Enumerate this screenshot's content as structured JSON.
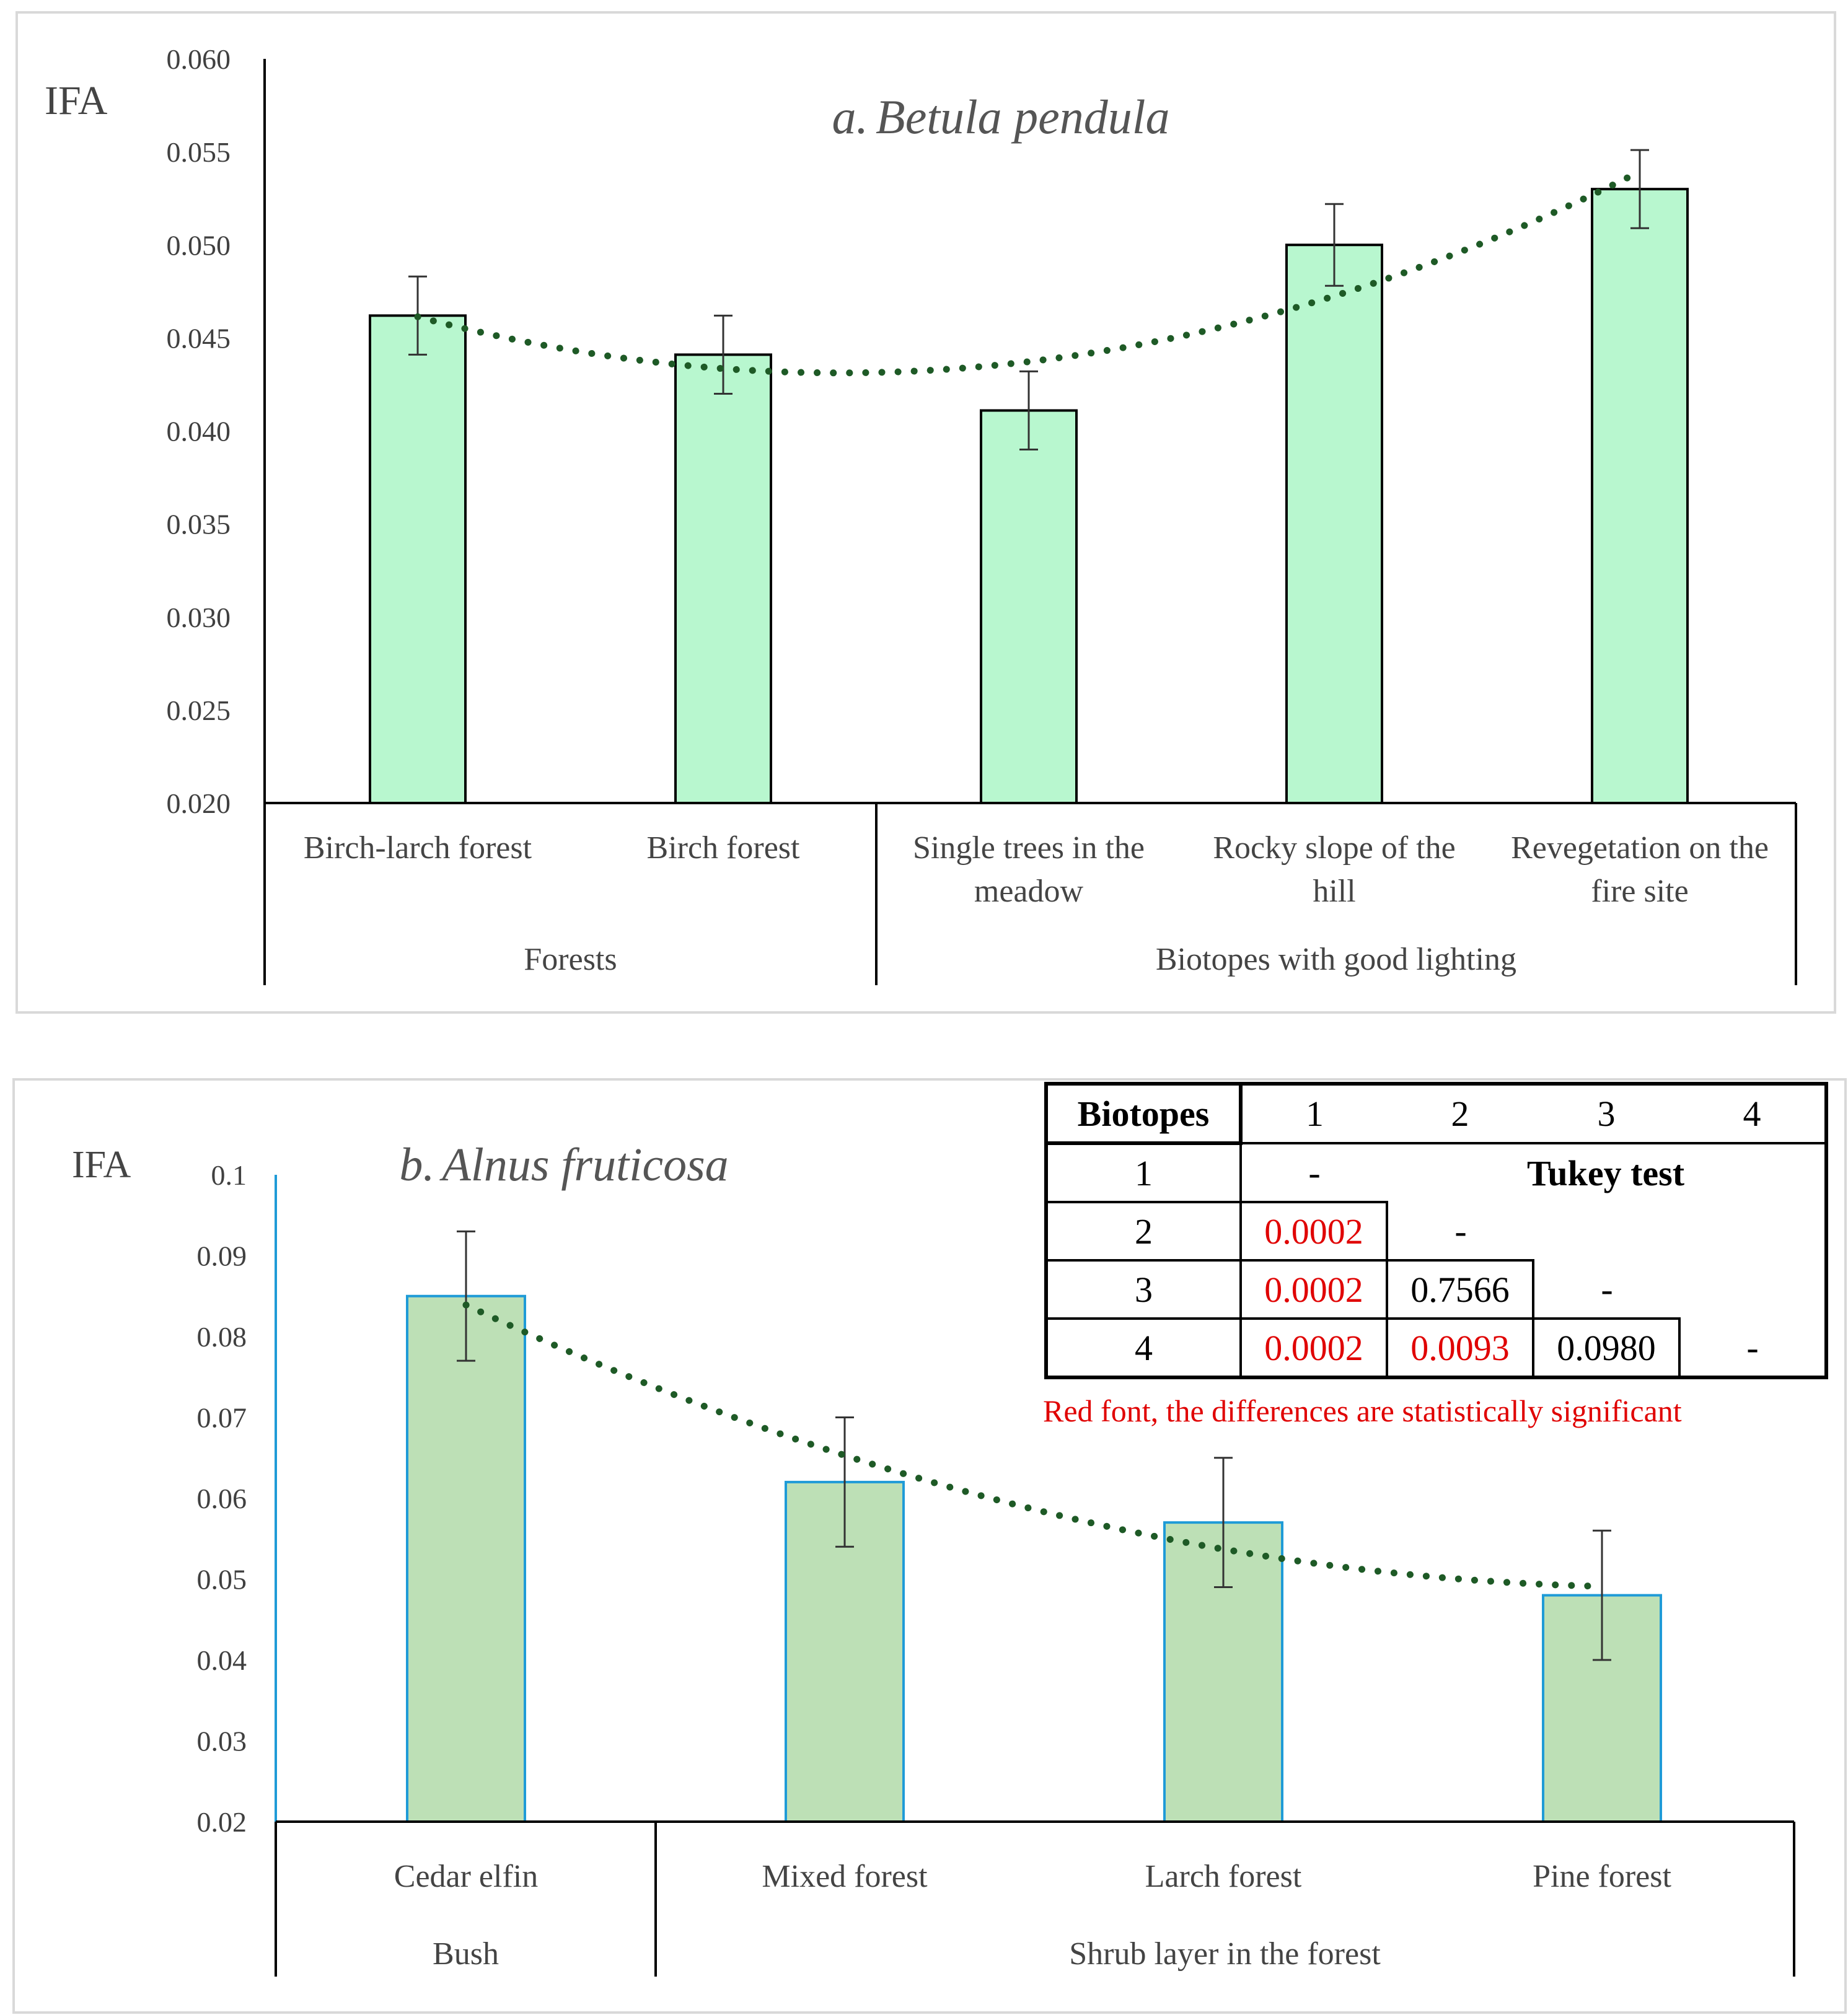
{
  "chart_data": [
    {
      "type": "bar",
      "title_prefix": "a.",
      "title_species": "Betula pendula",
      "ylabel": "IFA",
      "ylim": [
        0.02,
        0.06
      ],
      "yticks": [
        "0.060",
        "0.055",
        "0.050",
        "0.045",
        "0.040",
        "0.035",
        "0.030",
        "0.025",
        "0.020"
      ],
      "categories": [
        "Birch-larch forest",
        "Birch forest",
        "Single trees in the meadow",
        "Rocky slope of the hill",
        "Revegetation on the fire site"
      ],
      "category_lines": [
        [
          "Birch-larch forest"
        ],
        [
          "Birch forest"
        ],
        [
          "Single trees in the",
          "meadow"
        ],
        [
          "Rocky slope of the",
          "hill"
        ],
        [
          "Revegetation on the",
          "fire site"
        ]
      ],
      "values": [
        0.0462,
        0.0441,
        0.0411,
        0.05,
        0.053
      ],
      "errors": [
        0.0021,
        0.0021,
        0.0021,
        0.0022,
        0.0021
      ],
      "groups": [
        {
          "label": "Forests",
          "span": 2
        },
        {
          "label": "Biotopes with good lighting",
          "span": 3
        }
      ],
      "trendline": "polynomial, dotted",
      "bar_fill": "#b8f7cf",
      "bar_stroke": "#000000"
    },
    {
      "type": "bar",
      "title_prefix": "b.",
      "title_species": "Alnus fruticosa",
      "ylabel": "IFA",
      "ylim": [
        0.02,
        0.1
      ],
      "yticks": [
        "0.1",
        "0.09",
        "0.08",
        "0.07",
        "0.06",
        "0.05",
        "0.04",
        "0.03",
        "0.02"
      ],
      "categories": [
        "Cedar elfin",
        "Mixed forest",
        "Larch forest",
        "Pine forest"
      ],
      "values": [
        0.085,
        0.062,
        0.057,
        0.048
      ],
      "errors": [
        0.008,
        0.008,
        0.008,
        0.008
      ],
      "groups": [
        {
          "label": "Bush",
          "span": 1
        },
        {
          "label": "Shrub layer in the forest",
          "span": 3
        }
      ],
      "trendline": "polynomial, dotted",
      "bar_fill": "#bde0b6",
      "bar_stroke": "#1f9bd7"
    }
  ],
  "tukey": {
    "header_label": "Biotopes",
    "columns": [
      "1",
      "2",
      "3",
      "4"
    ],
    "caption": "Tukey test",
    "rows": [
      {
        "label": "1",
        "cells": [
          "-"
        ]
      },
      {
        "label": "2",
        "cells": [
          "0.0002",
          "-"
        ]
      },
      {
        "label": "3",
        "cells": [
          "0.0002",
          "0.7566",
          "-"
        ]
      },
      {
        "label": "4",
        "cells": [
          "0.0002",
          "0.0093",
          "0.0980",
          "-"
        ]
      }
    ],
    "note": "Red font, the differences are statistically significant"
  },
  "colors": {
    "trend": "#1e5a26",
    "significant": "#e00000",
    "axis": "#000000"
  }
}
